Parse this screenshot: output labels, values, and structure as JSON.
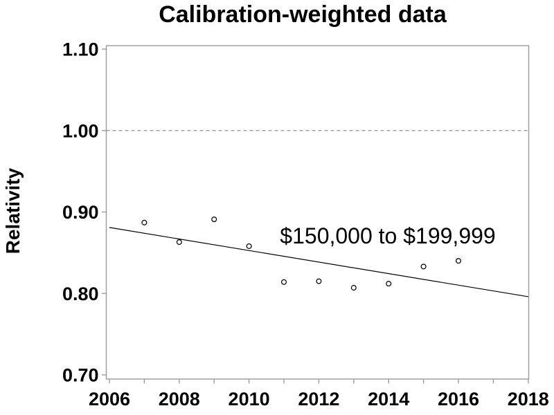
{
  "chart_data": {
    "type": "scatter",
    "title": "Calibration-weighted data",
    "xlabel": "",
    "ylabel": "Relativity",
    "annotation": "$150,000 to $199,999",
    "xlim": [
      2006,
      2018
    ],
    "ylim": [
      0.7,
      1.1
    ],
    "grid": "off",
    "legend": "none",
    "x_axis": {
      "minor_ticks": [
        2006,
        2007,
        2008,
        2009,
        2010,
        2011,
        2012,
        2013,
        2014,
        2015,
        2016,
        2017,
        2018
      ],
      "labels": [
        {
          "x": 2006,
          "text": "2006"
        },
        {
          "x": 2008,
          "text": "2008"
        },
        {
          "x": 2010,
          "text": "2010"
        },
        {
          "x": 2012,
          "text": "2012"
        },
        {
          "x": 2014,
          "text": "2014"
        },
        {
          "x": 2016,
          "text": "2016"
        },
        {
          "x": 2018,
          "text": "2018"
        }
      ]
    },
    "y_axis": {
      "labels": [
        {
          "y": 1.1,
          "text": "1.10"
        },
        {
          "y": 1.0,
          "text": "1.00"
        },
        {
          "y": 0.9,
          "text": "0.90"
        },
        {
          "y": 0.8,
          "text": "0.80"
        },
        {
          "y": 0.7,
          "text": "0.70"
        }
      ]
    },
    "reference_line": {
      "y": 1.0,
      "style": "dashed"
    },
    "points": [
      {
        "x": 2007,
        "y": 0.887
      },
      {
        "x": 2008,
        "y": 0.863
      },
      {
        "x": 2009,
        "y": 0.891
      },
      {
        "x": 2010,
        "y": 0.858
      },
      {
        "x": 2011,
        "y": 0.814
      },
      {
        "x": 2012,
        "y": 0.815
      },
      {
        "x": 2013,
        "y": 0.807
      },
      {
        "x": 2014,
        "y": 0.812
      },
      {
        "x": 2015,
        "y": 0.833
      },
      {
        "x": 2016,
        "y": 0.84
      }
    ],
    "trend_line": {
      "x": [
        2006,
        2018
      ],
      "y": [
        0.881,
        0.796
      ]
    },
    "colors": {
      "frame": "#9a9a9a",
      "tick": "#9a9a9a",
      "reference_line": "#8f8f8f",
      "data": "#000000",
      "background": "#ffffff"
    }
  }
}
